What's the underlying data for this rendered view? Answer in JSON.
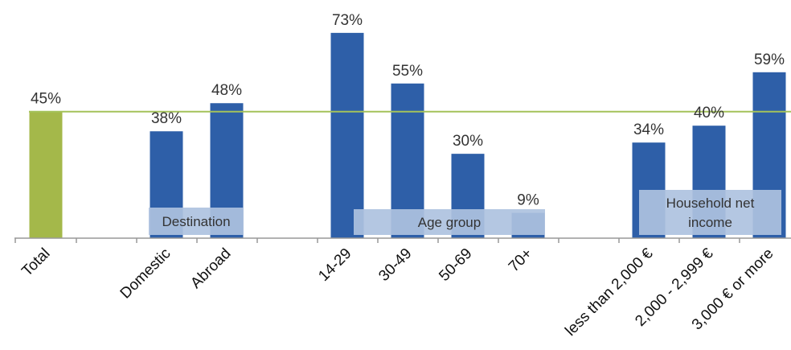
{
  "chart_data": {
    "type": "bar",
    "categories": [
      "Total",
      "Domestic",
      "Abroad",
      "14-29",
      "30-49",
      "50-69",
      "70+",
      "less than 2,000 €",
      "2,000 - 2,999 €",
      "3,000 € or more"
    ],
    "values": [
      45,
      38,
      48,
      73,
      55,
      30,
      9,
      34,
      40,
      59
    ],
    "value_labels": [
      "45%",
      "38%",
      "48%",
      "73%",
      "55%",
      "30%",
      "9%",
      "34%",
      "40%",
      "59%"
    ],
    "reference_line": 45,
    "groups": [
      {
        "label": "Destination",
        "members": [
          "Domestic",
          "Abroad"
        ]
      },
      {
        "label": "Age group",
        "members": [
          "14-29",
          "30-49",
          "50-69",
          "70+"
        ]
      },
      {
        "label": "Household net income",
        "members": [
          "less than 2,000 €",
          "2,000 - 2,999 €",
          "3,000 € or more"
        ]
      }
    ],
    "ylim": [
      0,
      75
    ],
    "grid": false,
    "legend": "none",
    "colors": {
      "total_bar": "#a4b84a",
      "bars": "#2e5fa8",
      "reference_line": "#a4c25a",
      "group_label_box": "#aec2e0"
    }
  }
}
